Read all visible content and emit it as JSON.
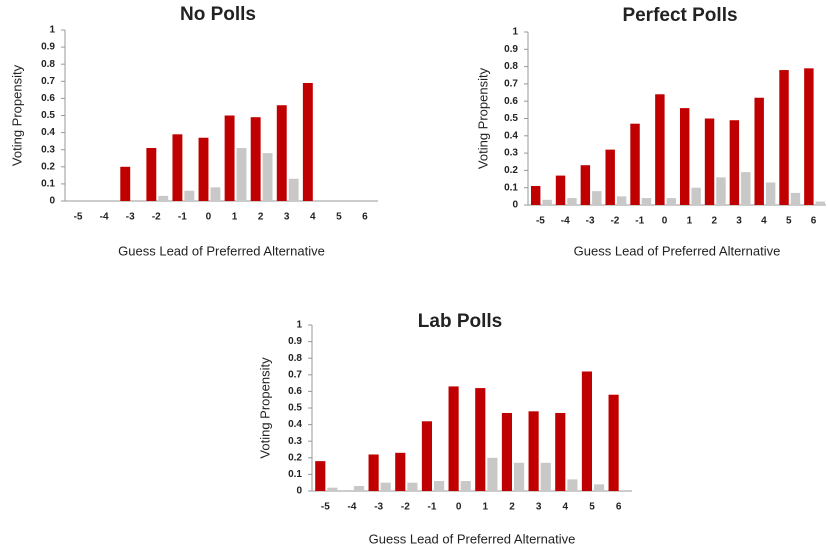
{
  "chart_data": [
    {
      "type": "bar",
      "title": "No Polls",
      "x_label": "Guess Lead of Preferred Alternative",
      "y_label": "Voting Propensity",
      "categories": [
        "-5",
        "-4",
        "-3",
        "-2",
        "-1",
        "0",
        "1",
        "2",
        "3",
        "4",
        "5",
        "6"
      ],
      "series": [
        {
          "color": "#c00000",
          "values": [
            null,
            null,
            0.2,
            0.31,
            0.39,
            0.37,
            0.5,
            0.49,
            0.56,
            0.69,
            null,
            null
          ]
        },
        {
          "color": "#c8c8c8",
          "values": [
            null,
            null,
            null,
            0.03,
            0.06,
            0.08,
            0.31,
            0.28,
            0.13,
            null,
            null,
            null
          ]
        }
      ],
      "ylim": [
        0,
        1
      ],
      "yticks": [
        0,
        0.1,
        0.2,
        0.3,
        0.4,
        0.5,
        0.6,
        0.7,
        0.8,
        0.9,
        1
      ]
    },
    {
      "type": "bar",
      "title": "Perfect Polls",
      "x_label": "Guess Lead of Preferred Alternative",
      "y_label": "Voting Propensity",
      "categories": [
        "-5",
        "-4",
        "-3",
        "-2",
        "-1",
        "0",
        "1",
        "2",
        "3",
        "4",
        "5",
        "6"
      ],
      "series": [
        {
          "color": "#c00000",
          "values": [
            0.11,
            0.17,
            0.23,
            0.32,
            0.47,
            0.64,
            0.56,
            0.5,
            0.49,
            0.62,
            0.78,
            0.79
          ]
        },
        {
          "color": "#c8c8c8",
          "values": [
            0.03,
            0.04,
            0.08,
            0.05,
            0.04,
            0.04,
            0.1,
            0.16,
            0.19,
            0.13,
            0.07,
            0.02
          ]
        }
      ],
      "ylim": [
        0,
        1
      ],
      "yticks": [
        0,
        0.1,
        0.2,
        0.3,
        0.4,
        0.5,
        0.6,
        0.7,
        0.8,
        0.9,
        1
      ]
    },
    {
      "type": "bar",
      "title": "Lab Polls",
      "x_label": "Guess Lead of Preferred Alternative",
      "y_label": "Voting Propensity",
      "categories": [
        "-5",
        "-4",
        "-3",
        "-2",
        "-1",
        "0",
        "1",
        "2",
        "3",
        "4",
        "5",
        "6"
      ],
      "series": [
        {
          "color": "#c00000",
          "values": [
            0.18,
            null,
            0.22,
            0.23,
            0.42,
            0.63,
            0.62,
            0.47,
            0.48,
            0.47,
            0.72,
            0.58
          ]
        },
        {
          "color": "#c8c8c8",
          "values": [
            0.02,
            0.03,
            0.05,
            0.05,
            0.06,
            0.06,
            0.2,
            0.17,
            0.17,
            0.07,
            0.04,
            null
          ]
        }
      ],
      "ylim": [
        0,
        1
      ],
      "yticks": [
        0,
        0.1,
        0.2,
        0.3,
        0.4,
        0.5,
        0.6,
        0.7,
        0.8,
        0.9,
        1
      ]
    }
  ]
}
